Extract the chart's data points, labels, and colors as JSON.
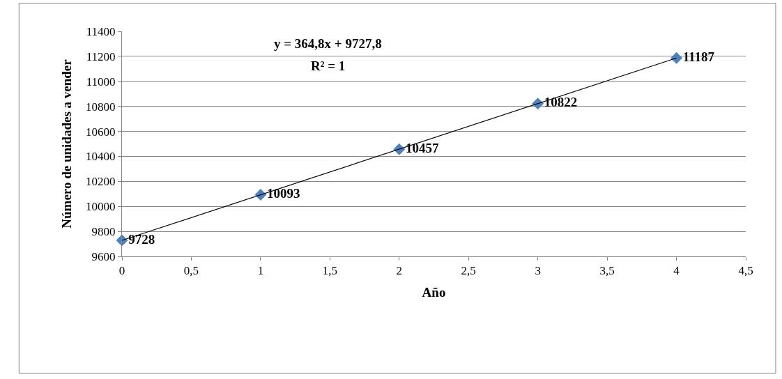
{
  "chart_data": {
    "type": "scatter",
    "xlabel": "Año",
    "ylabel": "Número de unidades a vender",
    "annotations": [
      "y = 364,8x + 9727,8",
      "R² = 1"
    ],
    "xlim": [
      0,
      4.5
    ],
    "xticks": [
      0,
      {
        "value": 0.5,
        "label": "0,5"
      },
      1,
      {
        "value": 1.5,
        "label": "1,5"
      },
      2,
      {
        "value": 2.5,
        "label": "2,5"
      },
      3,
      {
        "value": 3.5,
        "label": "3,5"
      },
      4,
      {
        "value": 4.5,
        "label": "4,5"
      }
    ],
    "ylim": [
      9600,
      11400
    ],
    "yticks": [
      9600,
      9800,
      10000,
      10200,
      10400,
      10600,
      10800,
      11000,
      11200,
      11400
    ],
    "grid": "y",
    "series": [
      {
        "color": "#4f81bd",
        "marker": "diamond",
        "data_labels": true,
        "x": [
          0,
          1,
          2,
          3,
          4
        ],
        "values": [
          9728,
          10093,
          10457,
          10822,
          11187
        ]
      },
      {
        "type": "line",
        "color": "#000000",
        "line_style": "solid",
        "x": [
          0,
          4
        ],
        "values": [
          9728,
          11187
        ]
      }
    ]
  }
}
